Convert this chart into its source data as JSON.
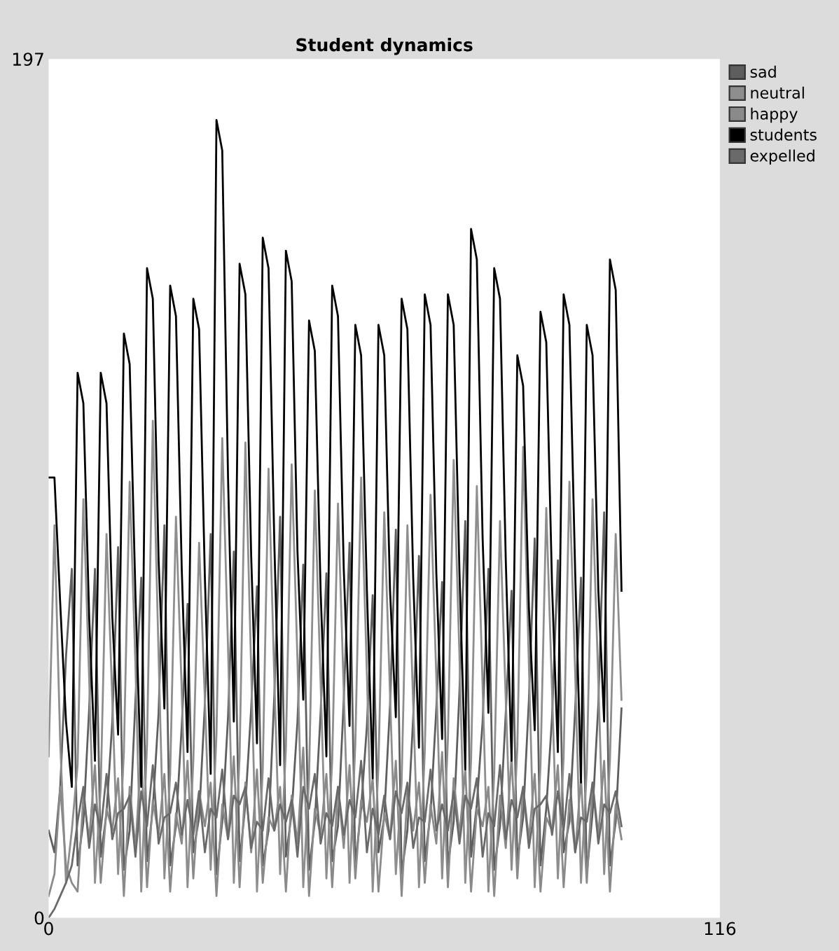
{
  "chart_data": {
    "type": "line",
    "title": "Student dynamics",
    "x": [
      0,
      1,
      2,
      3,
      4,
      5,
      6,
      7,
      8,
      9,
      10,
      11,
      12,
      13,
      14,
      15,
      16,
      17,
      18,
      19,
      20,
      21,
      22,
      23,
      24,
      25,
      26,
      27,
      28,
      29,
      30,
      31,
      32,
      33,
      34,
      35,
      36,
      37,
      38,
      39,
      40,
      41,
      42,
      43,
      44,
      45,
      46,
      47,
      48,
      49,
      50,
      51,
      52,
      53,
      54,
      55,
      56,
      57,
      58,
      59,
      60,
      61,
      62,
      63,
      64,
      65,
      66,
      67,
      68,
      69,
      70,
      71,
      72,
      73,
      74,
      75,
      76,
      77,
      78,
      79,
      80,
      81,
      82,
      83,
      84,
      85,
      86,
      87,
      88,
      89,
      90,
      91,
      92,
      93,
      94,
      95,
      96,
      97,
      98,
      99
    ],
    "xlim": [
      0,
      116
    ],
    "xticks": [
      0,
      116
    ],
    "ylim": [
      0,
      197
    ],
    "yticks": [
      0,
      197
    ],
    "grid": false,
    "legend": "top right",
    "marker": "none",
    "line_style": "solid",
    "series": [
      {
        "name": "sad",
        "color": "#5e5e5e",
        "values": [
          20,
          15,
          30,
          60,
          80,
          12,
          22,
          48,
          80,
          14,
          24,
          45,
          85,
          11,
          20,
          50,
          78,
          13,
          25,
          47,
          90,
          12,
          21,
          44,
          72,
          15,
          23,
          49,
          88,
          10,
          22,
          46,
          84,
          13,
          26,
          48,
          76,
          12,
          20,
          51,
          92,
          14,
          24,
          45,
          81,
          11,
          22,
          47,
          79,
          13,
          21,
          50,
          86,
          12,
          25,
          44,
          74,
          15,
          23,
          49,
          89,
          10,
          20,
          46,
          83,
          13,
          24,
          48,
          77,
          12,
          22,
          52,
          91,
          14,
          26,
          45,
          80,
          11,
          21,
          47,
          75,
          13,
          23,
          50,
          87,
          12,
          25,
          46,
          82,
          15,
          22,
          48,
          78,
          10,
          24,
          49,
          93,
          12,
          22,
          48
        ]
      },
      {
        "name": "neutral",
        "color": "#8e8e8e",
        "values": [
          37,
          90,
          40,
          8,
          20,
          35,
          96,
          55,
          8,
          30,
          88,
          50,
          10,
          38,
          100,
          58,
          6,
          40,
          114,
          60,
          9,
          33,
          92,
          52,
          7,
          36,
          86,
          50,
          11,
          42,
          110,
          62,
          8,
          37,
          109,
          57,
          6,
          34,
          103,
          55,
          10,
          39,
          104,
          59,
          7,
          32,
          98,
          54,
          9,
          36,
          95,
          52,
          8,
          40,
          101,
          56,
          6,
          35,
          93,
          51,
          10,
          31,
          90,
          49,
          7,
          38,
          97,
          55,
          9,
          41,
          105,
          60,
          8,
          36,
          99,
          53,
          6,
          33,
          91,
          50,
          11,
          39,
          108,
          58,
          7,
          35,
          94,
          52,
          9,
          37,
          100,
          56,
          8,
          34,
          96,
          54,
          10,
          36,
          88,
          50
        ]
      },
      {
        "name": "happy",
        "color": "#8a8a8a",
        "values": [
          5,
          10,
          30,
          12,
          8,
          6,
          28,
          18,
          35,
          8,
          25,
          20,
          32,
          5,
          30,
          16,
          38,
          7,
          27,
          19,
          33,
          6,
          24,
          17,
          36,
          9,
          29,
          21,
          31,
          5,
          26,
          18,
          37,
          7,
          31,
          15,
          34,
          8,
          23,
          20,
          30,
          6,
          28,
          17,
          39,
          5,
          25,
          19,
          33,
          7,
          30,
          16,
          35,
          9,
          27,
          22,
          32,
          6,
          24,
          18,
          36,
          5,
          29,
          20,
          31,
          8,
          26,
          17,
          38,
          7,
          32,
          19,
          34,
          6,
          25,
          21,
          30,
          5,
          28,
          16,
          37,
          9,
          30,
          18,
          33,
          6,
          23,
          20,
          35,
          7,
          27,
          15,
          32,
          8,
          31,
          19,
          36,
          6,
          26,
          18
        ]
      },
      {
        "name": "students",
        "color": "#000000",
        "values": [
          101,
          101,
          72,
          45,
          30,
          125,
          118,
          69,
          36,
          125,
          118,
          69,
          42,
          134,
          127,
          74,
          30,
          149,
          142,
          82,
          48,
          145,
          138,
          80,
          38,
          142,
          135,
          78,
          33,
          183,
          176,
          101,
          45,
          150,
          143,
          83,
          40,
          156,
          149,
          86,
          35,
          153,
          146,
          84,
          50,
          137,
          130,
          75,
          37,
          145,
          138,
          80,
          44,
          136,
          129,
          75,
          32,
          136,
          129,
          75,
          46,
          142,
          135,
          78,
          39,
          143,
          136,
          79,
          41,
          143,
          136,
          79,
          34,
          158,
          151,
          87,
          47,
          149,
          142,
          82,
          36,
          129,
          122,
          71,
          43,
          139,
          132,
          76,
          38,
          143,
          136,
          79,
          31,
          136,
          129,
          75,
          45,
          151,
          144,
          75
        ]
      },
      {
        "name": "expelled",
        "color": "#6a6a6a",
        "values": [
          0,
          2,
          5,
          8,
          12,
          22,
          30,
          16,
          26,
          20,
          33,
          18,
          24,
          25,
          28,
          14,
          29,
          21,
          35,
          17,
          23,
          24,
          31,
          19,
          27,
          19,
          29,
          15,
          25,
          23,
          34,
          18,
          28,
          26,
          30,
          16,
          22,
          20,
          32,
          20,
          26,
          22,
          27,
          14,
          30,
          25,
          33,
          17,
          24,
          21,
          30,
          19,
          27,
          23,
          36,
          15,
          25,
          19,
          28,
          18,
          29,
          24,
          31,
          16,
          23,
          22,
          34,
          20,
          26,
          20,
          29,
          17,
          28,
          25,
          32,
          14,
          24,
          21,
          35,
          18,
          27,
          23,
          30,
          16,
          25,
          26,
          28,
          19,
          29,
          20,
          33,
          15,
          23,
          22,
          31,
          17,
          26,
          24,
          29,
          21
        ]
      }
    ]
  }
}
